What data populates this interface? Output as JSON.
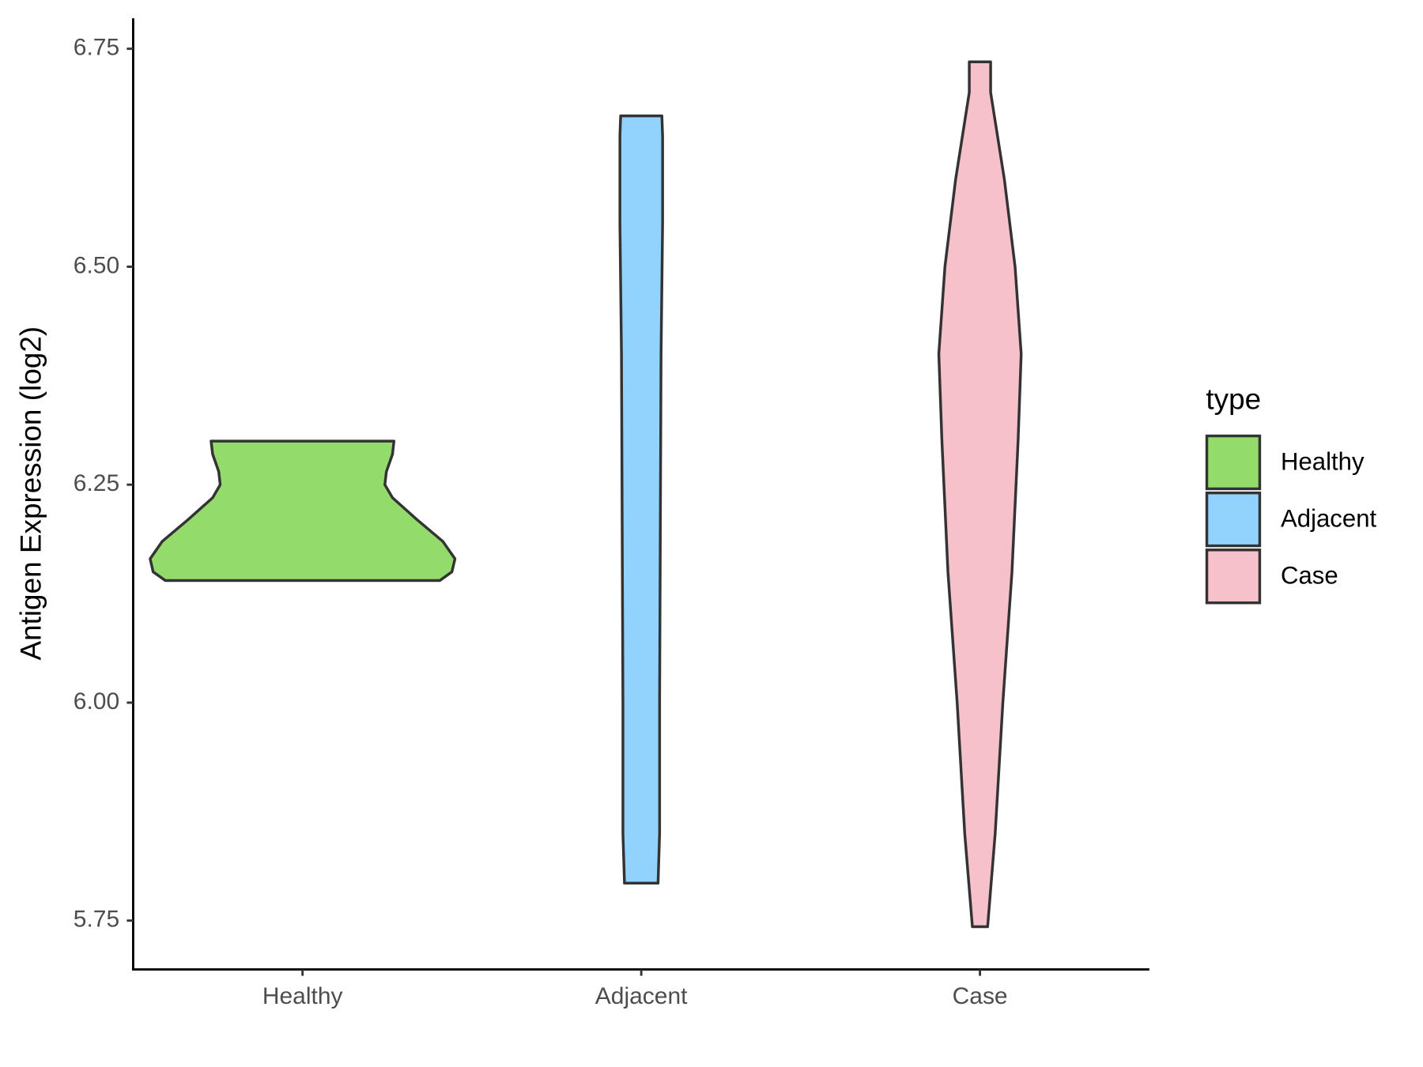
{
  "chart_data": {
    "type": "violin",
    "y_label": "Antigen Expression (log2)",
    "legend_title": "type",
    "categories": [
      "Healthy",
      "Adjacent",
      "Case"
    ],
    "ylim": [
      5.694,
      6.785
    ],
    "yticks": [
      {
        "value": 5.75,
        "label": "5.75"
      },
      {
        "value": 6.0,
        "label": "6.00"
      },
      6.25,
      {
        "value": 6.5,
        "label": "6.50"
      },
      6.75
    ],
    "legend_position": "right",
    "grid": false,
    "series": [
      {
        "name": "Healthy",
        "color": "#93dc6b",
        "y": [
          6.14,
          6.15,
          6.165,
          6.185,
          6.21,
          6.235,
          6.25,
          6.265,
          6.285,
          6.3
        ],
        "width": [
          0.9,
          0.98,
          1.0,
          0.92,
          0.75,
          0.59,
          0.54,
          0.55,
          0.59,
          0.6
        ]
      },
      {
        "name": "Adjacent",
        "color": "#92d3fe",
        "y": [
          5.793,
          5.85,
          6.0,
          6.2,
          6.4,
          6.55,
          6.65,
          6.673
        ],
        "width": [
          0.11,
          0.12,
          0.12,
          0.125,
          0.13,
          0.14,
          0.14,
          0.135
        ]
      },
      {
        "name": "Case",
        "color": "#f7c1cb",
        "y": [
          5.743,
          5.85,
          6.0,
          6.15,
          6.3,
          6.4,
          6.5,
          6.6,
          6.7,
          6.735
        ],
        "width": [
          0.05,
          0.1,
          0.15,
          0.21,
          0.25,
          0.27,
          0.23,
          0.16,
          0.07,
          0.07
        ]
      }
    ]
  }
}
